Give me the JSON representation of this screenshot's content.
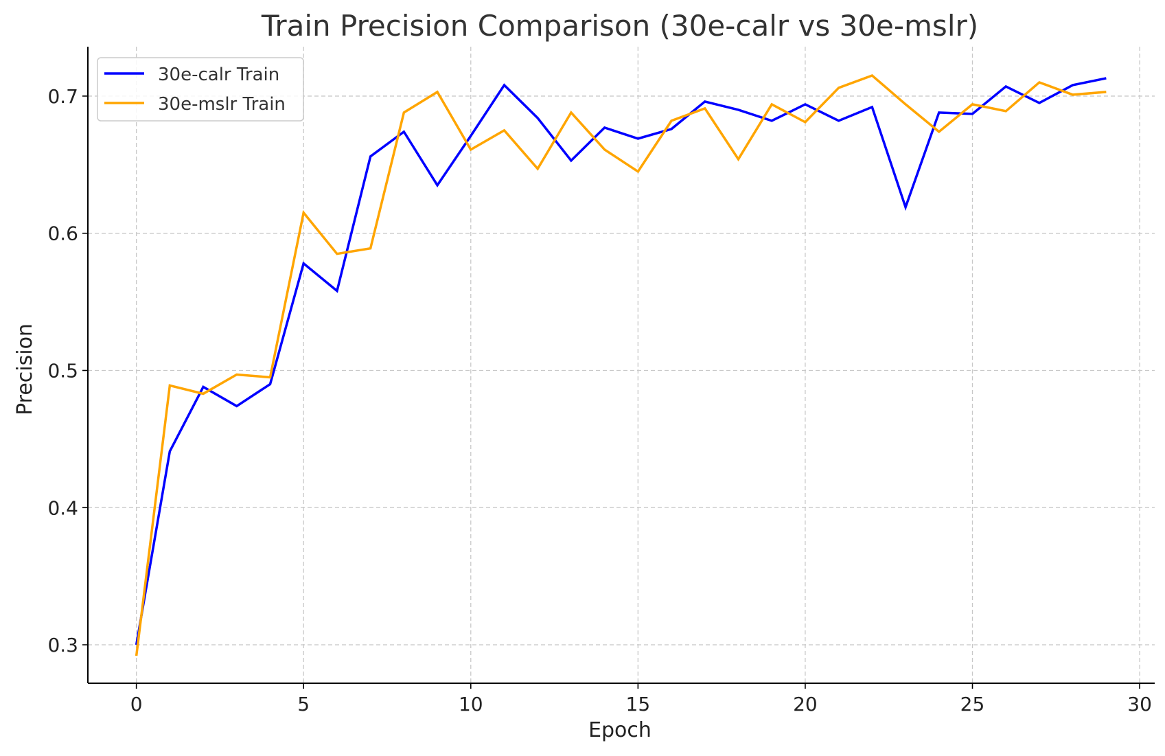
{
  "chart_data": {
    "type": "line",
    "title": "Train Precision Comparison (30e-calr vs 30e-mslr)",
    "xlabel": "Epoch",
    "ylabel": "Precision",
    "xlim": [
      -1.45,
      30.45
    ],
    "ylim": [
      0.272,
      0.736
    ],
    "xticks": [
      0,
      5,
      10,
      15,
      20,
      25,
      30
    ],
    "yticks": [
      0.3,
      0.4,
      0.5,
      0.6,
      0.7
    ],
    "xtick_labels": [
      "0",
      "5",
      "10",
      "15",
      "20",
      "25",
      "30"
    ],
    "ytick_labels": [
      "0.3",
      "0.4",
      "0.5",
      "0.6",
      "0.7"
    ],
    "grid": true,
    "legend_position": "top-left",
    "x": [
      0,
      1,
      2,
      3,
      4,
      5,
      6,
      7,
      8,
      9,
      10,
      11,
      12,
      13,
      14,
      15,
      16,
      17,
      18,
      19,
      20,
      21,
      22,
      23,
      24,
      25,
      26,
      27,
      28,
      29
    ],
    "series": [
      {
        "name": "30e-calr Train",
        "color": "#0000ff",
        "values": [
          0.3,
          0.441,
          0.488,
          0.474,
          0.49,
          0.578,
          0.558,
          0.656,
          0.674,
          0.635,
          0.671,
          0.708,
          0.684,
          0.653,
          0.677,
          0.669,
          0.676,
          0.696,
          0.69,
          0.682,
          0.694,
          0.682,
          0.692,
          0.619,
          0.688,
          0.687,
          0.707,
          0.695,
          0.708,
          0.713
        ]
      },
      {
        "name": "30e-mslr Train",
        "color": "#ffa500",
        "values": [
          0.292,
          0.489,
          0.483,
          0.497,
          0.495,
          0.615,
          0.585,
          0.589,
          0.688,
          0.703,
          0.661,
          0.675,
          0.647,
          0.688,
          0.661,
          0.645,
          0.682,
          0.691,
          0.654,
          0.694,
          0.681,
          0.706,
          0.715,
          0.694,
          0.674,
          0.694,
          0.689,
          0.71,
          0.701,
          0.703
        ]
      }
    ]
  }
}
